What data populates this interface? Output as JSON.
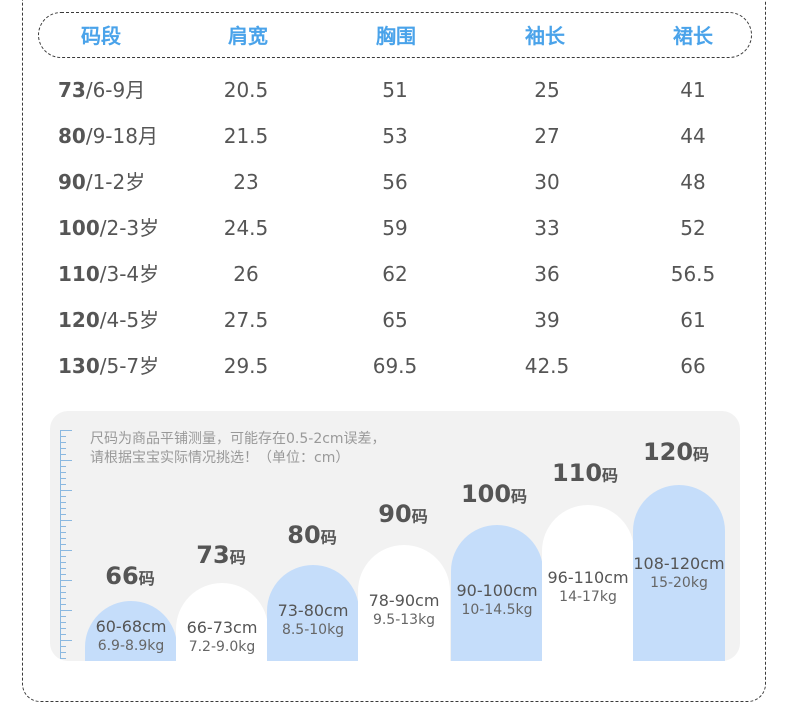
{
  "header": [
    "码段",
    "肩宽",
    "胸围",
    "袖长",
    "裙长"
  ],
  "rows": [
    {
      "size": "73",
      "age": "/6-9月",
      "shoulder": "20.5",
      "chest": "51",
      "sleeve": "25",
      "skirt": "41"
    },
    {
      "size": "80",
      "age": "/9-18月",
      "shoulder": "21.5",
      "chest": "53",
      "sleeve": "27",
      "skirt": "44"
    },
    {
      "size": "90",
      "age": "/1-2岁",
      "shoulder": "23",
      "chest": "56",
      "sleeve": "30",
      "skirt": "48"
    },
    {
      "size": "100",
      "age": "/2-3岁",
      "shoulder": "24.5",
      "chest": "59",
      "sleeve": "33",
      "skirt": "52"
    },
    {
      "size": "110",
      "age": "/3-4岁",
      "shoulder": "26",
      "chest": "62",
      "sleeve": "36",
      "skirt": "56.5"
    },
    {
      "size": "120",
      "age": "/4-5岁",
      "shoulder": "27.5",
      "chest": "65",
      "sleeve": "39",
      "skirt": "61"
    },
    {
      "size": "130",
      "age": "/5-7岁",
      "shoulder": "29.5",
      "chest": "69.5",
      "sleeve": "42.5",
      "skirt": "66"
    }
  ],
  "note": {
    "line1": "尺码为商品平铺测量，可能存在0.5-2cm误差，",
    "line2": "请根据宝宝实际情况挑选！（单位：cm）"
  },
  "size_guide": [
    {
      "num": "66",
      "unit": "码",
      "range": "60-68cm",
      "weight": "6.9-8.9kg",
      "style": "blue"
    },
    {
      "num": "73",
      "unit": "码",
      "range": "66-73cm",
      "weight": "7.2-9.0kg",
      "style": "white"
    },
    {
      "num": "80",
      "unit": "码",
      "range": "73-80cm",
      "weight": "8.5-10kg",
      "style": "blue"
    },
    {
      "num": "90",
      "unit": "码",
      "range": "78-90cm",
      "weight": "9.5-13kg",
      "style": "white"
    },
    {
      "num": "100",
      "unit": "码",
      "range": "90-100cm",
      "weight": "10-14.5kg",
      "style": "blue"
    },
    {
      "num": "110",
      "unit": "码",
      "range": "96-110cm",
      "weight": "14-17kg",
      "style": "white"
    },
    {
      "num": "120",
      "unit": "码",
      "range": "108-120cm",
      "weight": "15-20kg",
      "style": "blue"
    }
  ],
  "colors": {
    "accent": "#4aa3ea",
    "bar_blue": "#c5ddfa",
    "panel": "#f2f2f2",
    "text": "#555555"
  }
}
